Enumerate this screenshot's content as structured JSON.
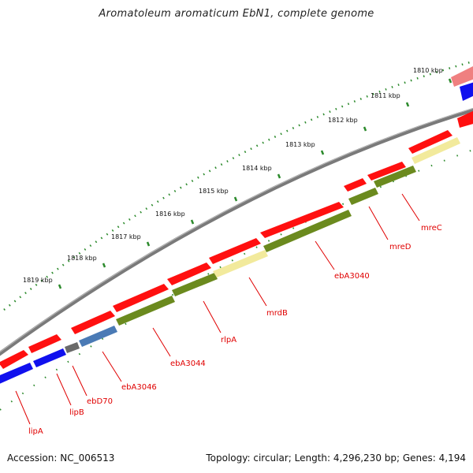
{
  "title": "Aromatoleum aromaticum EbN1, complete genome",
  "footer": {
    "accession": "Accession: NC_006513",
    "topology": "Topology: circular; Length: 4,296,230 bp; Genes: 4,194"
  },
  "kbp_labels": [
    "1810 kbp",
    "1811 kbp",
    "1812 kbp",
    "1813 kbp",
    "1814 kbp",
    "1815 kbp",
    "1816 kbp",
    "1817 kbp",
    "1818 kbp",
    "1819 kbp"
  ],
  "gene_labels": [
    "mreC",
    "mreD",
    "ebA3040",
    "mrdB",
    "rlpA",
    "ebA3044",
    "ebA3046",
    "ebD70",
    "lipB",
    "lipA"
  ],
  "colors": {
    "forward_cds": "#ff1010",
    "reverse_cds": "#1010ee",
    "olive": "#6b8a1e",
    "pale_yellow": "#f2ea9c",
    "steel_blue": "#4a7ab5",
    "gray": "#6a6a6a",
    "pink": "#ef8080",
    "tick_green": "#2c8a2c",
    "label_red": "#e00000"
  }
}
